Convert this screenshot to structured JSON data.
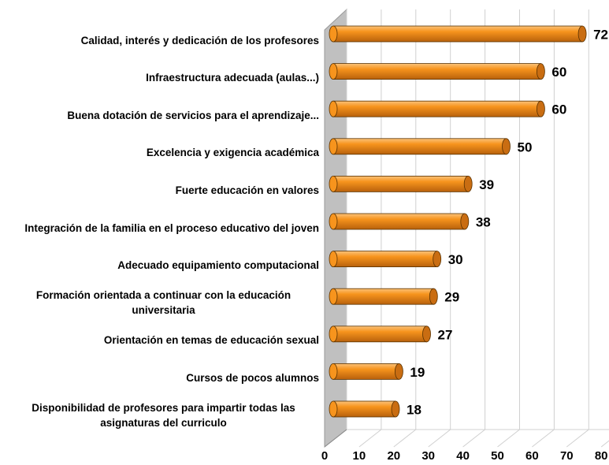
{
  "chart_data": {
    "type": "bar",
    "orientation": "horizontal",
    "categories": [
      "Calidad, interés y dedicación de los profesores",
      "Infraestructura adecuada (aulas...)",
      "Buena dotación de servicios para el aprendizaje...",
      "Excelencia y exigencia académica",
      "Fuerte educación en valores",
      "Integración de la familia en el proceso educativo del joven",
      "Adecuado equipamiento computacional",
      "Formación orientada a continuar con la educación universitaria",
      "Orientación en temas de educación sexual",
      "Cursos de pocos alumnos",
      "Disponibilidad de profesores para impartir  todas las asignaturas del curriculo"
    ],
    "values": [
      72,
      60,
      60,
      50,
      39,
      38,
      30,
      29,
      27,
      19,
      18
    ],
    "color": "#f7941d",
    "xlim": [
      0,
      80
    ],
    "xticks": [
      0,
      10,
      20,
      30,
      40,
      50,
      60,
      70,
      80
    ],
    "grid": true
  }
}
